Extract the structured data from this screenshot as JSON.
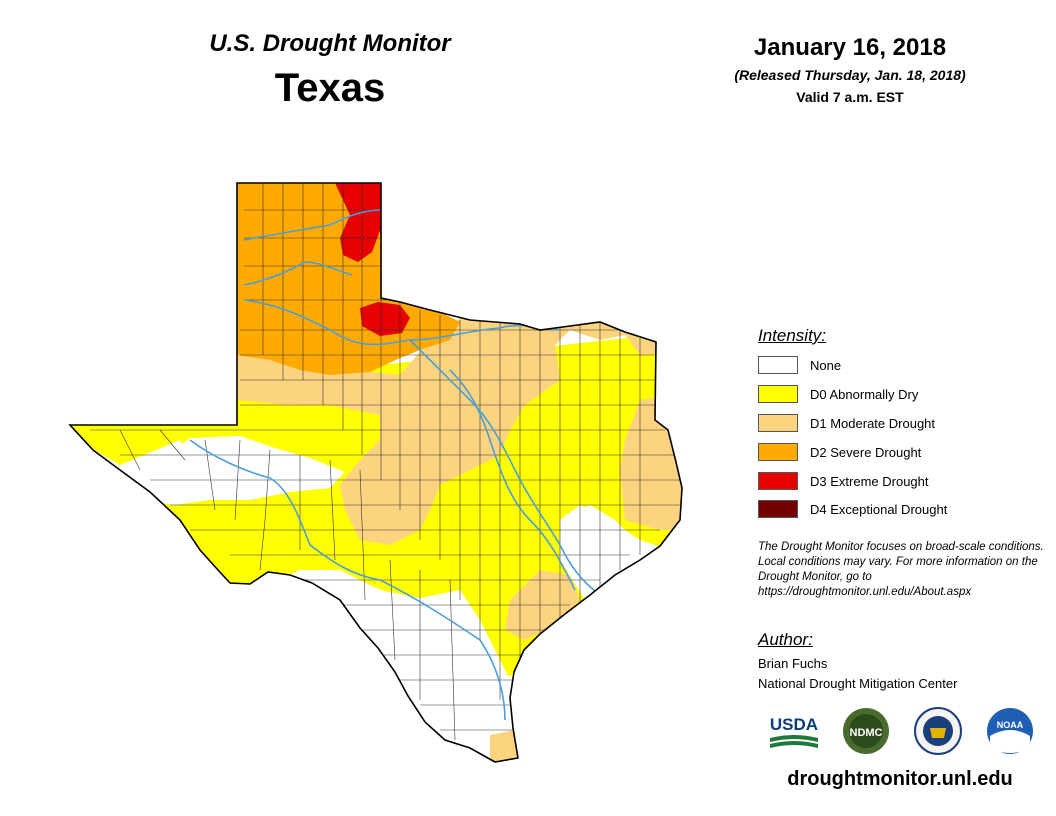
{
  "header": {
    "monitor_title": "U.S. Drought Monitor",
    "state": "Texas",
    "date": "January 16, 2018",
    "released": "(Released Thursday, Jan. 18, 2018)",
    "valid": "Valid 7 a.m. EST"
  },
  "legend": {
    "title": "Intensity:",
    "items": [
      {
        "label": "None",
        "color": "#ffffff"
      },
      {
        "label": "D0 Abnormally Dry",
        "color": "#ffff00"
      },
      {
        "label": "D1 Moderate Drought",
        "color": "#fcd37f"
      },
      {
        "label": "D2 Severe Drought",
        "color": "#ffaa00"
      },
      {
        "label": "D3 Extreme Drought",
        "color": "#e60000"
      },
      {
        "label": "D4 Exceptional Drought",
        "color": "#730000"
      }
    ]
  },
  "note": "The Drought Monitor focuses on broad-scale conditions. Local conditions may vary. For more information on the Drought Monitor, go to https://droughtmonitor.unl.edu/About.aspx",
  "author": {
    "title": "Author:",
    "name": "Brian Fuchs",
    "org": "National Drought Mitigation Center"
  },
  "logos": [
    {
      "name": "usda-logo",
      "text": "USDA"
    },
    {
      "name": "ndmc-logo",
      "text": "NDMC"
    },
    {
      "name": "commerce-seal-logo",
      "text": ""
    },
    {
      "name": "noaa-logo",
      "text": "NOAA"
    }
  ],
  "url": "droughtmonitor.unl.edu",
  "colors": {
    "none": "#ffffff",
    "d0": "#ffff00",
    "d1": "#fcd37f",
    "d2": "#ffaa00",
    "d3": "#e60000",
    "river": "#4a9fd8",
    "border": "#000000",
    "county": "#333333"
  }
}
